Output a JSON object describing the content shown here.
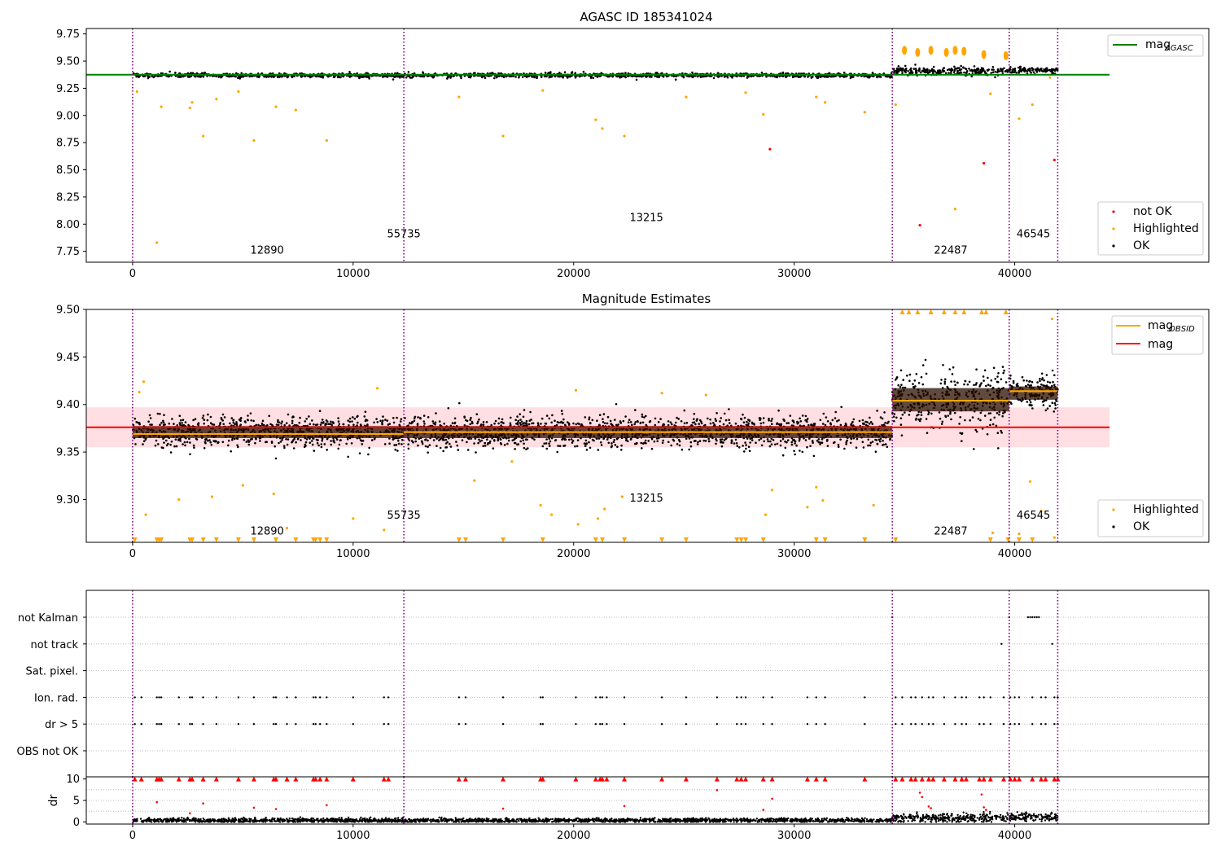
{
  "colors": {
    "ok": "#000000",
    "highlighted": "#ffa500",
    "not_ok": "#ff0000",
    "mag_agasc": "#008000",
    "mag_obsid": "#ffa500",
    "mag": "#ff0000",
    "band": "#ffc0c8",
    "obsid_line": "#800080",
    "grid": "#b0b0b0"
  },
  "chart_data": [
    {
      "type": "scatter",
      "title": "AGASC ID 185341024",
      "xlim": [
        -2100,
        48800
      ],
      "ylim": [
        7.65,
        9.8
      ],
      "xticks": [
        0,
        10000,
        20000,
        30000,
        40000
      ],
      "xtick_labels": [
        "0",
        "10000",
        "20000",
        "30000",
        "40000"
      ],
      "yticks": [
        7.75,
        8.0,
        8.25,
        8.5,
        8.75,
        9.0,
        9.25,
        9.5,
        9.75
      ],
      "ytick_labels": [
        "7.75",
        "8.00",
        "8.25",
        "8.50",
        "8.75",
        "9.00",
        "9.25",
        "9.50",
        "9.75"
      ],
      "obsid_boundaries": [
        0,
        12300,
        34450,
        39750,
        41950
      ],
      "obsid_labels": [
        {
          "text": "12890",
          "x": 6100,
          "y": 7.73
        },
        {
          "text": "55735",
          "x": 12300,
          "y": 7.88
        },
        {
          "text": "13215",
          "x": 23300,
          "y": 8.03
        },
        {
          "text": "22487",
          "x": 37100,
          "y": 7.73
        },
        {
          "text": "46545",
          "x": 40850,
          "y": 7.88
        }
      ],
      "mag_agasc": {
        "value": 9.375,
        "x": [
          -2100,
          44300
        ]
      },
      "segments": [
        {
          "x": [
            0,
            34450
          ],
          "mean": 9.37,
          "spread": 0.022
        },
        {
          "x": [
            34450,
            39750
          ],
          "mean": 9.41,
          "spread": 0.04
        },
        {
          "x": [
            39750,
            41950
          ],
          "mean": 9.415,
          "spread": 0.03
        }
      ],
      "highlighted_points": [
        [
          1100,
          7.83
        ],
        [
          1300,
          9.08
        ],
        [
          2600,
          9.07
        ],
        [
          3200,
          8.81
        ],
        [
          5500,
          8.77
        ],
        [
          6500,
          9.08
        ],
        [
          7400,
          9.05
        ],
        [
          8800,
          8.77
        ],
        [
          2700,
          9.12
        ],
        [
          3800,
          9.15
        ],
        [
          4800,
          9.22
        ],
        [
          14800,
          9.17
        ],
        [
          16800,
          8.81
        ],
        [
          18600,
          9.23
        ],
        [
          21000,
          8.96
        ],
        [
          21300,
          8.88
        ],
        [
          22300,
          8.81
        ],
        [
          25100,
          9.17
        ],
        [
          27800,
          9.21
        ],
        [
          28600,
          9.01
        ],
        [
          31000,
          9.17
        ],
        [
          31400,
          9.12
        ],
        [
          33200,
          9.03
        ],
        [
          34600,
          9.1
        ],
        [
          37300,
          8.14
        ],
        [
          38900,
          9.2
        ],
        [
          40200,
          8.97
        ],
        [
          40800,
          9.1
        ],
        [
          41600,
          9.35
        ],
        [
          200,
          9.22
        ]
      ],
      "highlighted_clusters": [
        [
          35000,
          9.6
        ],
        [
          35600,
          9.58
        ],
        [
          36200,
          9.6
        ],
        [
          36900,
          9.58
        ],
        [
          37300,
          9.6
        ],
        [
          37700,
          9.59
        ],
        [
          38600,
          9.56
        ],
        [
          39600,
          9.55
        ]
      ],
      "not_ok_points": [
        [
          28900,
          8.69
        ],
        [
          35700,
          7.99
        ],
        [
          38600,
          8.56
        ],
        [
          41800,
          8.59
        ]
      ],
      "legend_top": {
        "position": "upper right",
        "entries": [
          "mag",
          "AGASC"
        ]
      },
      "legend_bottom": {
        "position": "lower right",
        "entries": [
          "not OK",
          "Highlighted",
          "OK"
        ]
      }
    },
    {
      "type": "scatter",
      "title": "Magnitude Estimates",
      "xlim": [
        -2100,
        48800
      ],
      "ylim": [
        9.255,
        9.5
      ],
      "xticks": [
        0,
        10000,
        20000,
        30000,
        40000
      ],
      "xtick_labels": [
        "0",
        "10000",
        "20000",
        "30000",
        "40000"
      ],
      "yticks": [
        9.3,
        9.35,
        9.4,
        9.45,
        9.5
      ],
      "ytick_labels": [
        "9.30",
        "9.35",
        "9.40",
        "9.45",
        "9.50"
      ],
      "obsid_boundaries": [
        0,
        12300,
        34450,
        39750,
        41950
      ],
      "obsid_labels": [
        {
          "text": "12890",
          "x": 6100,
          "y": 9.263
        },
        {
          "text": "55735",
          "x": 12300,
          "y": 9.28
        },
        {
          "text": "13215",
          "x": 23300,
          "y": 9.298
        },
        {
          "text": "22487",
          "x": 37100,
          "y": 9.263
        },
        {
          "text": "46545",
          "x": 40850,
          "y": 9.28
        }
      ],
      "mag": {
        "value": 9.376,
        "band": [
          9.355,
          9.397
        ],
        "x": [
          -2100,
          44300
        ]
      },
      "mag_obsid": [
        {
          "x": [
            0,
            12300
          ],
          "value": 9.369
        },
        {
          "x": [
            12300,
            34450
          ],
          "value": 9.371
        },
        {
          "x": [
            34450,
            39750
          ],
          "value": 9.404
        },
        {
          "x": [
            39750,
            41950
          ],
          "value": 9.414
        }
      ],
      "segments": [
        {
          "x": [
            0,
            34450
          ],
          "mean": 9.371,
          "spread": 0.018
        },
        {
          "x": [
            34450,
            39750
          ],
          "mean": 9.405,
          "spread": 0.035
        },
        {
          "x": [
            39750,
            41950
          ],
          "mean": 9.412,
          "spread": 0.02
        }
      ],
      "highlighted_points": [
        [
          300,
          9.413
        ],
        [
          500,
          9.424
        ],
        [
          600,
          9.284
        ],
        [
          2100,
          9.3
        ],
        [
          3600,
          9.303
        ],
        [
          5000,
          9.315
        ],
        [
          6400,
          9.306
        ],
        [
          7000,
          9.27
        ],
        [
          10000,
          9.28
        ],
        [
          11400,
          9.268
        ],
        [
          11100,
          9.417
        ],
        [
          15500,
          9.32
        ],
        [
          17200,
          9.34
        ],
        [
          18500,
          9.294
        ],
        [
          19000,
          9.284
        ],
        [
          20200,
          9.274
        ],
        [
          21100,
          9.28
        ],
        [
          21400,
          9.29
        ],
        [
          22200,
          9.303
        ],
        [
          28700,
          9.284
        ],
        [
          29000,
          9.31
        ],
        [
          30600,
          9.292
        ],
        [
          31000,
          9.313
        ],
        [
          31300,
          9.299
        ],
        [
          33600,
          9.294
        ],
        [
          39000,
          9.265
        ],
        [
          40200,
          9.264
        ],
        [
          40700,
          9.319
        ],
        [
          41200,
          9.288
        ],
        [
          41700,
          9.49
        ],
        [
          41800,
          9.26
        ],
        [
          20100,
          9.415
        ],
        [
          24000,
          9.412
        ],
        [
          26000,
          9.41
        ]
      ],
      "clipped_low_x": [
        100,
        1100,
        1200,
        1300,
        2600,
        2700,
        3200,
        3800,
        4800,
        5500,
        6500,
        7400,
        8200,
        8300,
        8500,
        8800,
        14800,
        15100,
        16800,
        18600,
        21000,
        21300,
        22300,
        24000,
        25100,
        27400,
        27600,
        27800,
        28600,
        31000,
        31400,
        33200,
        34600,
        38900,
        39700,
        40200,
        40800
      ],
      "clipped_high_x": [
        34900,
        35200,
        35600,
        36200,
        36800,
        37300,
        37700,
        38500,
        38700,
        39600
      ],
      "legend_top": {
        "position": "upper right",
        "entries": [
          "mag",
          "OBSID",
          "mag"
        ]
      },
      "legend_bottom": {
        "position": "lower right",
        "entries": [
          "Highlighted",
          "OK"
        ]
      }
    },
    {
      "type": "scatter",
      "title": "",
      "xlim": [
        -2100,
        48800
      ],
      "xticks": [
        0,
        10000,
        20000,
        30000,
        40000
      ],
      "xtick_labels": [
        "0",
        "10000",
        "20000",
        "30000",
        "40000"
      ],
      "flag_rows": [
        "not Kalman",
        "not track",
        "Sat. pixel.",
        "Ion. rad.",
        "dr > 5",
        "OBS not OK"
      ],
      "flag_points": {
        "not Kalman": [
          34450,
          39750,
          40600,
          40700,
          40800,
          40900,
          41000,
          41100
        ],
        "not track": [
          39400,
          41700
        ],
        "Sat. pixel.": [],
        "Ion. rad.": [
          100,
          400,
          1100,
          1200,
          1300,
          2100,
          2600,
          2700,
          3200,
          3800,
          4800,
          5500,
          6400,
          6500,
          7000,
          7400,
          8200,
          8300,
          8500,
          8800,
          10000,
          11400,
          11600,
          14800,
          15100,
          16800,
          18500,
          18600,
          20100,
          21000,
          21200,
          21300,
          21500,
          22300,
          24000,
          25100,
          26500,
          27400,
          27600,
          27800,
          28600,
          29000,
          30600,
          31000,
          31400,
          33200,
          34600,
          34900,
          35300,
          35500,
          35800,
          36100,
          36300,
          36800,
          37300,
          37600,
          37800,
          38400,
          38600,
          38900,
          39500,
          39800,
          40000,
          40200,
          40800,
          41200,
          41400,
          41800,
          41950
        ],
        "dr > 5": [
          100,
          400,
          1100,
          1200,
          1300,
          2100,
          2600,
          2700,
          3200,
          3800,
          4800,
          5500,
          6400,
          6500,
          7000,
          7400,
          8200,
          8300,
          8500,
          8800,
          10000,
          11400,
          11600,
          14800,
          15100,
          16800,
          18500,
          18600,
          20100,
          21000,
          21200,
          21300,
          21500,
          22300,
          24000,
          25100,
          26500,
          27400,
          27600,
          27800,
          28600,
          29000,
          30600,
          31000,
          31400,
          33200,
          34600,
          34900,
          35300,
          35500,
          35800,
          36100,
          36300,
          36800,
          37300,
          37600,
          37800,
          38400,
          38600,
          38900,
          39500,
          39800,
          40000,
          40200,
          40800,
          41200,
          41400,
          41800,
          41950
        ],
        "OBS not OK": []
      },
      "obsid_boundaries": [
        0,
        12300,
        34450,
        39750,
        41950
      ]
    },
    {
      "type": "scatter",
      "title": "",
      "ylabel": "dr",
      "xlim": [
        -2100,
        48800
      ],
      "ylim": [
        -0.5,
        10.5
      ],
      "xticks": [
        0,
        10000,
        20000,
        30000,
        40000
      ],
      "xtick_labels": [
        "0",
        "10000",
        "20000",
        "30000",
        "40000"
      ],
      "yticks": [
        0,
        5,
        10
      ],
      "ytick_labels": [
        "0",
        "5",
        "10"
      ],
      "obsid_boundaries": [
        0,
        12300,
        34450,
        39750,
        41950
      ],
      "clipped_high_x": [
        100,
        400,
        1100,
        1200,
        1300,
        2100,
        2600,
        2700,
        3200,
        3800,
        4800,
        5500,
        6400,
        6500,
        7000,
        7400,
        8200,
        8300,
        8500,
        8800,
        10000,
        11400,
        11600,
        14800,
        15100,
        16800,
        18500,
        18600,
        20100,
        21000,
        21200,
        21300,
        21500,
        22300,
        24000,
        25100,
        26500,
        27400,
        27600,
        27800,
        28600,
        29000,
        30600,
        31000,
        31400,
        33200,
        34600,
        34900,
        35300,
        35500,
        35800,
        36100,
        36300,
        36800,
        37300,
        37600,
        37800,
        38400,
        38600,
        38900,
        39500,
        39800,
        40000,
        40200,
        40800,
        41200,
        41400,
        41800,
        41950
      ],
      "outliers": [
        [
          1100,
          4.6
        ],
        [
          2600,
          2.0
        ],
        [
          3200,
          4.3
        ],
        [
          5500,
          3.3
        ],
        [
          6500,
          3.0
        ],
        [
          8800,
          3.9
        ],
        [
          16800,
          3.1
        ],
        [
          22300,
          3.7
        ],
        [
          26500,
          7.4
        ],
        [
          28600,
          2.8
        ],
        [
          29000,
          5.4
        ],
        [
          35700,
          6.8
        ],
        [
          35800,
          5.8
        ],
        [
          36100,
          3.6
        ],
        [
          36200,
          3.2
        ],
        [
          38500,
          6.4
        ],
        [
          38600,
          3.4
        ],
        [
          38700,
          2.8
        ]
      ]
    }
  ]
}
